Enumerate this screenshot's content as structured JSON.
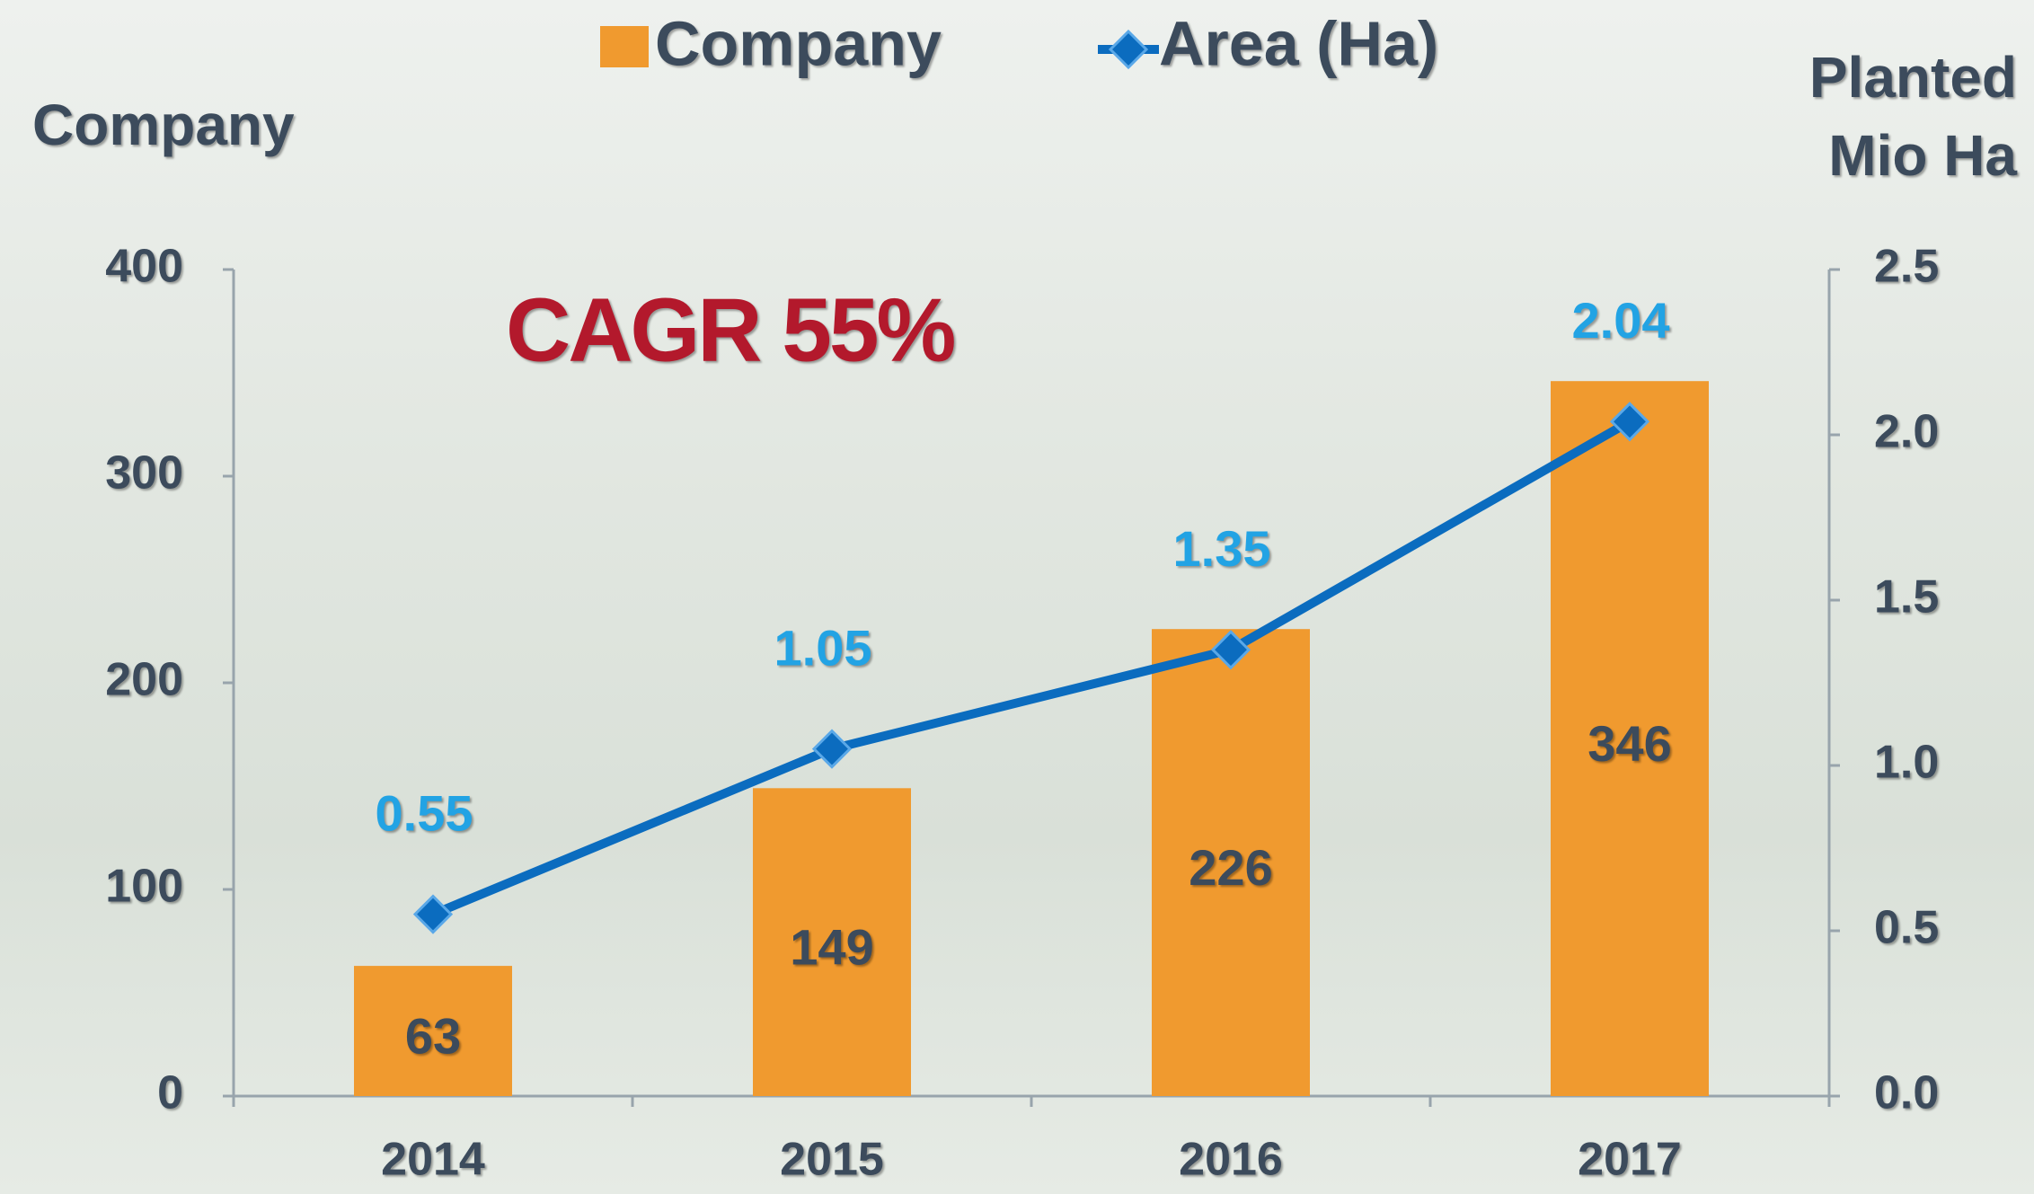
{
  "chart_data": {
    "type": "bar_line",
    "annotation": "CAGR 55%",
    "y_label": "Company",
    "y2_label": [
      "Planted",
      "Mio Ha"
    ],
    "categories": [
      "2014",
      "2015",
      "2016",
      "2017"
    ],
    "series": [
      {
        "name": "Company",
        "type": "bar",
        "color": "#f09a2f",
        "values": [
          63,
          149,
          226,
          346
        ]
      },
      {
        "name": "Area (Ha)",
        "type": "line",
        "axis": "y2",
        "color": "#0b6cbf",
        "label_color": "#22a3e4",
        "values": [
          0.55,
          1.05,
          1.35,
          2.04
        ]
      }
    ],
    "ylim": [
      0,
      400
    ],
    "yticks": [
      0,
      100,
      200,
      300,
      400
    ],
    "y2lim": [
      0,
      2.5
    ],
    "y2ticks": [
      {
        "value": 0,
        "label": "0.0"
      },
      0.5,
      {
        "value": 1,
        "label": "1.0"
      },
      1.5,
      {
        "value": 2,
        "label": "2.0"
      },
      2.5
    ]
  }
}
